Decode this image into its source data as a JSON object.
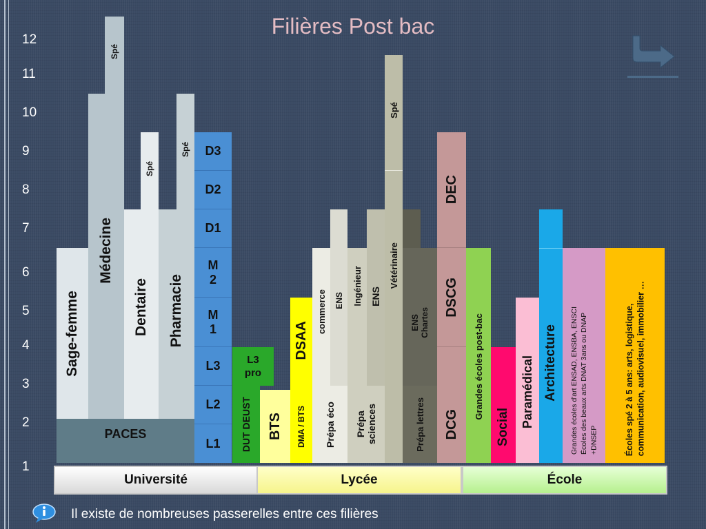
{
  "title": "Filières Post bac",
  "y_axis": [
    "12",
    "11",
    "10",
    "9",
    "8",
    "7",
    "6",
    "5",
    "4",
    "3",
    "2",
    "1"
  ],
  "universite": {
    "sage_femme": "Sage-femme",
    "medecine": "Médecine",
    "medecine_spe": "Spé",
    "dentaire": "Dentaire",
    "dentaire_spe": "Spé",
    "pharmacie": "Pharmacie",
    "pharmacie_spe": "Spé",
    "paces": "PACES",
    "lmd": [
      "D3",
      "D2",
      "D1",
      "M\n2",
      "M\n1",
      "L3",
      "L2",
      "L1"
    ],
    "l3pro": "L3\npro",
    "dut": "DUT DEUST"
  },
  "lycee": {
    "bts": "BTS",
    "dsaa": "DSAA",
    "dma_bts": "DMA / BTS",
    "commerce": "commerce",
    "ens1": "ENS",
    "prepa_eco": "Prépa éco",
    "ingenieur": "Ingénieur",
    "ens2": "ENS",
    "veterinaire": "Vétérinaire",
    "vet_spe": "Spé",
    "prepa_sciences": "Prépa\nsciences",
    "ens_chartes": "ENS\nChartes",
    "prepa_lettres": "Prépa lettres"
  },
  "ecole": {
    "dec": "DEC",
    "dscg": "DSCG",
    "dcg": "DCG",
    "grandes_ecoles": "Grandes écoles post-bac",
    "social": "Social",
    "paramedical": "Paramédical",
    "architecture": "Architecture",
    "art": "Grandes écoles d'art ENSAD, ENSBA, ENSCI\nÉcoles des beaux arts DNAT 3ans ou DNAP\n+DNSEP",
    "spe": "Écoles spé 2 à 5 ans: arts, logistique,\ncommunication, audiovisuel, immobilier …"
  },
  "footer": {
    "universite": "Université",
    "lycee": "Lycée",
    "ecole": "École"
  },
  "note": "Il existe de nombreuses passerelles entre ces filières",
  "colors": {
    "background": "#3a4a63",
    "paces": "#5f7c88",
    "lmd": "#4a8fd4",
    "l3pro": "#2aa82a",
    "dsaa": "#ffff00",
    "dec": "#c49898",
    "grandes_ecoles": "#8fd252",
    "social": "#ff0a6e",
    "paramedical": "#fbbed4",
    "architecture": "#1aa8e8",
    "art": "#d59ac6",
    "spe": "#ffc000"
  },
  "icons": [
    "info-icon",
    "return-arrow-icon"
  ]
}
